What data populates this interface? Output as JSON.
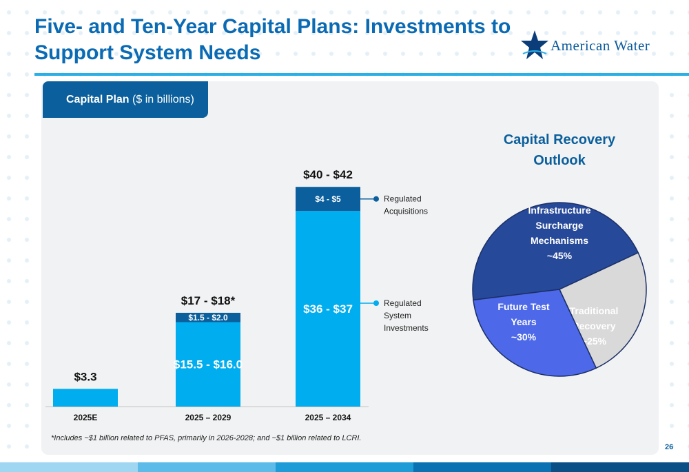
{
  "slide": {
    "title_line1": "Five- and Ten-Year Capital Plans: Investments to",
    "title_line2": "Support System Needs",
    "logo_text": "American Water",
    "logo_icon": "star-icon",
    "panel_title_bold": "Capital Plan",
    "panel_title_rest": " ($ in billions)",
    "footnote": "*Includes ~$1 billion related to PFAS, primarily in 2026-2028; and ~$1 billion related to LCRI.",
    "page_number": "26",
    "colors": {
      "brand_blue": "#0a6ab3",
      "light_blue": "#00adef",
      "dark_blue": "#0a5f9c",
      "pie_dark": "#27499a",
      "pie_mid": "#4d68e8",
      "pie_gray": "#d9d9d9"
    }
  },
  "chart_data": [
    {
      "type": "bar",
      "stacked": true,
      "title": "Capital Plan ($ in billions)",
      "categories": [
        "2025E",
        "2025 – 2029",
        "2025 – 2034"
      ],
      "series": [
        {
          "name": "Regulated System Investments",
          "values": [
            3.3,
            15.75,
            36.5
          ],
          "labels": [
            "",
            "$15.5 - $16.0",
            "$36 - $37"
          ]
        },
        {
          "name": "Regulated Acquisitions",
          "values": [
            0,
            1.75,
            4.5
          ],
          "labels": [
            "",
            "$1.5 - $2.0",
            "$4 - $5"
          ]
        }
      ],
      "total_labels": [
        "$3.3",
        "$17 - $18*",
        "$40 - $42"
      ],
      "legend_labels": [
        [
          "Regulated",
          "Acquisitions"
        ],
        [
          "Regulated",
          "System",
          "Investments"
        ]
      ],
      "ylim": [
        0,
        41
      ],
      "grid": false,
      "legend_position": "right"
    },
    {
      "type": "pie",
      "title_lines": [
        "Capital Recovery",
        "Outlook"
      ],
      "slices": [
        {
          "label_lines": [
            "Infrastructure",
            "Surcharge",
            "Mechanisms",
            "~45%"
          ],
          "value": 45,
          "color": "#27499a"
        },
        {
          "label_lines": [
            "Traditional",
            "Recovery",
            "~25%"
          ],
          "value": 25,
          "color": "#d9d9d9"
        },
        {
          "label_lines": [
            "Future Test",
            "Years",
            "~30%"
          ],
          "value": 30,
          "color": "#4d68e8"
        }
      ]
    }
  ]
}
